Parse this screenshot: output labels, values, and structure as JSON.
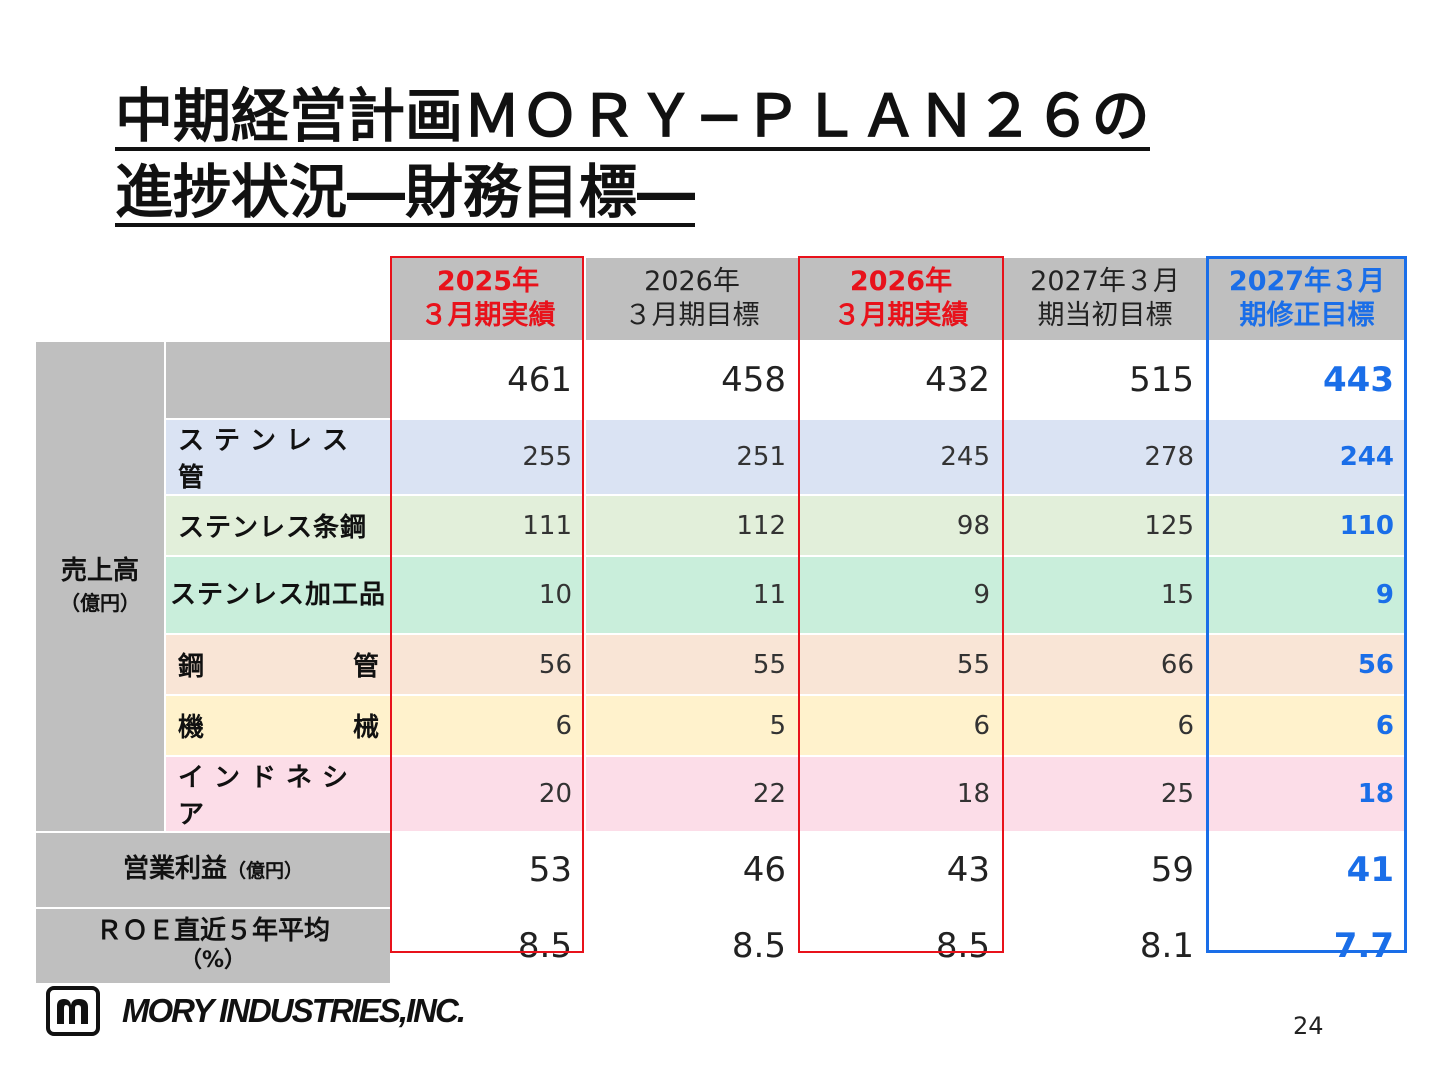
{
  "title": {
    "line1": "中期経営計画ＭＯＲＹ−ＰＬＡＮ２６の",
    "line2": "進捗状況―財務目標―"
  },
  "columns": [
    {
      "line1": "2025年",
      "line2": "３月期実績",
      "style": "red"
    },
    {
      "line1": "2026年",
      "line2": "３月期目標",
      "style": "normal"
    },
    {
      "line1": "2026年",
      "line2": "３月期実績",
      "style": "red"
    },
    {
      "line1": "2027年３月",
      "line2": "期当初目標",
      "style": "normal"
    },
    {
      "line1": "2027年３月",
      "line2": "期修正目標",
      "style": "blue"
    }
  ],
  "sales": {
    "label": "売上高",
    "unit": "（億円）",
    "total": [
      "461",
      "458",
      "432",
      "515",
      "443"
    ],
    "segments": [
      {
        "label": "ステンレス管",
        "values": [
          "255",
          "251",
          "245",
          "278",
          "244"
        ],
        "color": "#dae3f3"
      },
      {
        "label": "ステンレス条鋼",
        "values": [
          "111",
          "112",
          "98",
          "125",
          "110"
        ],
        "color": "#e2efda"
      },
      {
        "label": "ステンレス加工品",
        "values": [
          "10",
          "11",
          "9",
          "15",
          "9"
        ],
        "color": "#c9eedb"
      },
      {
        "label_left": "鋼",
        "label_right": "管",
        "values": [
          "56",
          "55",
          "55",
          "66",
          "56"
        ],
        "color": "#f9e5d6"
      },
      {
        "label_left": "機",
        "label_right": "械",
        "values": [
          "6",
          "5",
          "6",
          "6",
          "6"
        ],
        "color": "#fff2cc"
      },
      {
        "label": "インドネシア",
        "values": [
          "20",
          "22",
          "18",
          "25",
          "18"
        ],
        "color": "#fcdde8"
      }
    ]
  },
  "operating_profit": {
    "label": "営業利益",
    "unit": "（億円）",
    "values": [
      "53",
      "46",
      "43",
      "59",
      "41"
    ]
  },
  "roe": {
    "label": "ＲＯＥ直近５年平均",
    "unit": "（%）",
    "values": [
      "8.5",
      "8.5",
      "8.5",
      "8.1",
      "7.7"
    ]
  },
  "footer": {
    "company": "MORY INDUSTRIES,INC.",
    "page_number": "24"
  },
  "colors": {
    "red_highlight": "#e8121b",
    "blue_highlight": "#1a6ee8",
    "header_gray": "#bfbfbf"
  }
}
